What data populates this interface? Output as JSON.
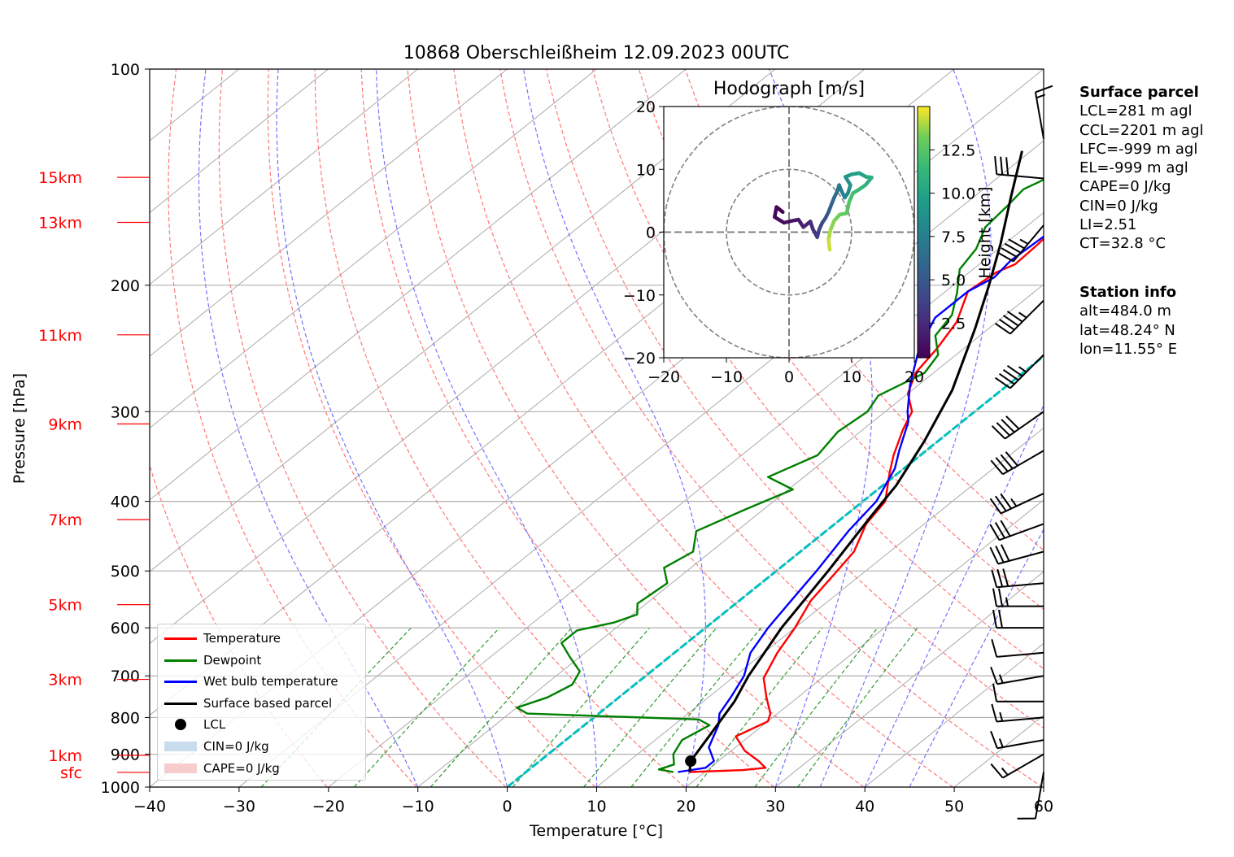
{
  "chart_data": {
    "type": "line",
    "title": "10868 Oberschleißheim 12.09.2023 00UTC",
    "xlabel": "Temperature [°C]",
    "ylabel": "Pressure [hPa]",
    "x_ticks": [
      "−40",
      "−30",
      "−20",
      "−10",
      "0",
      "10",
      "20",
      "30",
      "40",
      "50",
      "60"
    ],
    "x_tick_values": [
      -40,
      -30,
      -20,
      -10,
      0,
      10,
      20,
      30,
      40,
      50,
      60
    ],
    "y_ticks": [
      "100",
      "200",
      "300",
      "400",
      "500",
      "600",
      "700",
      "800",
      "900",
      "1000"
    ],
    "y_tick_values": [
      100,
      200,
      300,
      400,
      500,
      600,
      700,
      800,
      900,
      1000
    ],
    "xlim": [
      -40,
      60
    ],
    "ylim": [
      1000,
      100
    ],
    "y_scale": "log",
    "grid": true,
    "height_labels": [
      {
        "label": "15km",
        "p": 141.5
      },
      {
        "label": "13km",
        "p": 163.5
      },
      {
        "label": "11km",
        "p": 234.5
      },
      {
        "label": "9km",
        "p": 312
      },
      {
        "label": "7km",
        "p": 424
      },
      {
        "label": "5km",
        "p": 557
      },
      {
        "label": "3km",
        "p": 708
      },
      {
        "label": "1km",
        "p": 903
      },
      {
        "label": "sfc",
        "p": 954
      }
    ],
    "legend": {
      "position": "lower-left",
      "entries": [
        {
          "label": "Temperature",
          "color": "#ff0000",
          "kind": "line"
        },
        {
          "label": "Dewpoint",
          "color": "#008000",
          "kind": "line"
        },
        {
          "label": "Wet bulb temperature",
          "color": "#0000ff",
          "kind": "line"
        },
        {
          "label": "Surface based parcel",
          "color": "#000000",
          "kind": "line"
        },
        {
          "label": "LCL",
          "color": "#000000",
          "kind": "dot"
        },
        {
          "label": "CIN=0 J/kg",
          "color": "#c8dced",
          "kind": "patch"
        },
        {
          "label": "CAPE=0 J/kg",
          "color": "#f6cccc",
          "kind": "patch"
        }
      ]
    },
    "series": [
      {
        "name": "Temperature",
        "color": "#ff0000",
        "points": [
          [
            18.3,
            953
          ],
          [
            24.0,
            947
          ],
          [
            26.2,
            940
          ],
          [
            24.5,
            920
          ],
          [
            21.5,
            890
          ],
          [
            18.5,
            850
          ],
          [
            20.0,
            810
          ],
          [
            19.2,
            790
          ],
          [
            16.5,
            750
          ],
          [
            13.5,
            705
          ],
          [
            11.5,
            650
          ],
          [
            10.0,
            600
          ],
          [
            8.0,
            550
          ],
          [
            6.8,
            500
          ],
          [
            6.0,
            470
          ],
          [
            3.5,
            430
          ],
          [
            2.5,
            400
          ],
          [
            -1.0,
            365
          ],
          [
            -3.0,
            345
          ],
          [
            -5.5,
            318
          ],
          [
            -7.0,
            300
          ],
          [
            -10.0,
            283
          ],
          [
            -12.0,
            265
          ],
          [
            -13.0,
            245
          ],
          [
            -14.5,
            225
          ],
          [
            -17.5,
            204
          ],
          [
            -17.0,
            192
          ],
          [
            -16.0,
            187
          ],
          [
            -16.2,
            177
          ],
          [
            -16.5,
            167
          ],
          [
            -15.5,
            157
          ],
          [
            -12.5,
            148
          ],
          [
            -8.0,
            144
          ],
          [
            -5.0,
            136
          ]
        ]
      },
      {
        "name": "Dewpoint",
        "color": "#008000",
        "points": [
          [
            16.5,
            953
          ],
          [
            14.5,
            945
          ],
          [
            15.5,
            930
          ],
          [
            14.0,
            900
          ],
          [
            13.0,
            860
          ],
          [
            14.0,
            820
          ],
          [
            12.0,
            805
          ],
          [
            -8.0,
            790
          ],
          [
            -10.0,
            775
          ],
          [
            -8.0,
            750
          ],
          [
            -7.0,
            720
          ],
          [
            -8.0,
            690
          ],
          [
            -11.0,
            660
          ],
          [
            -14.0,
            630
          ],
          [
            -14.0,
            605
          ],
          [
            -11.0,
            590
          ],
          [
            -9.5,
            575
          ],
          [
            -11.0,
            555
          ],
          [
            -10.5,
            520
          ],
          [
            -13.0,
            495
          ],
          [
            -12.0,
            470
          ],
          [
            -14.5,
            440
          ],
          [
            -12.0,
            410
          ],
          [
            -9.5,
            385
          ],
          [
            -14.0,
            370
          ],
          [
            -11.5,
            345
          ],
          [
            -12.5,
            320
          ],
          [
            -12.0,
            300
          ],
          [
            -13.0,
            285
          ],
          [
            -11.0,
            265
          ],
          [
            -12.0,
            250
          ],
          [
            -15.0,
            235
          ],
          [
            -16.0,
            220
          ],
          [
            -18.5,
            205
          ],
          [
            -21.5,
            190
          ],
          [
            -22.5,
            178
          ],
          [
            -24.5,
            166
          ],
          [
            -25.0,
            155
          ],
          [
            -25.5,
            147
          ],
          [
            -24.0,
            140
          ]
        ]
      },
      {
        "name": "Wet bulb temperature",
        "color": "#0000ff",
        "points": [
          [
            17.0,
            953
          ],
          [
            19.5,
            940
          ],
          [
            19.5,
            920
          ],
          [
            17.0,
            880
          ],
          [
            15.0,
            820
          ],
          [
            13.5,
            790
          ],
          [
            12.5,
            750
          ],
          [
            11.0,
            700
          ],
          [
            8.5,
            650
          ],
          [
            7.0,
            600
          ],
          [
            5.8,
            550
          ],
          [
            4.5,
            500
          ],
          [
            2.5,
            440
          ],
          [
            1.5,
            400
          ],
          [
            -1.0,
            360
          ],
          [
            -3.0,
            340
          ],
          [
            -6.0,
            310
          ],
          [
            -7.5,
            300
          ],
          [
            -11.0,
            275
          ],
          [
            -15.0,
            245
          ],
          [
            -17.5,
            222
          ],
          [
            -17.5,
            204
          ],
          [
            -16.5,
            195
          ],
          [
            -17.0,
            185
          ],
          [
            -16.5,
            165
          ],
          [
            -15.5,
            155
          ],
          [
            -13.0,
            148
          ],
          [
            -8.0,
            143
          ],
          [
            -5.5,
            137
          ]
        ]
      },
      {
        "name": "Surface based parcel",
        "color": "#000000",
        "points": [
          [
            18.3,
            953
          ],
          [
            16.9,
            920
          ],
          [
            15.5,
            850
          ],
          [
            13.5,
            760
          ],
          [
            11.5,
            700
          ],
          [
            8.5,
            600
          ],
          [
            5.8,
            500
          ],
          [
            3.0,
            420
          ],
          [
            1.5,
            380
          ],
          [
            -1.5,
            330
          ],
          [
            -5.5,
            280
          ],
          [
            -11.5,
            230
          ],
          [
            -16.0,
            200
          ],
          [
            -20.5,
            175
          ],
          [
            -26.0,
            150
          ],
          [
            -31.0,
            130
          ]
        ]
      }
    ],
    "lcl": {
      "t": 16.9,
      "p": 920
    },
    "zero_line": {
      "color": "#00c0c0",
      "t": 0
    },
    "background_lines": {
      "isotherm_step": 10,
      "dry_adiabat_theta": [
        253,
        263,
        273,
        283,
        293,
        303,
        313,
        323,
        333,
        343,
        353,
        363,
        373
      ],
      "moist_adiabat_t0": [
        -10,
        0,
        10,
        20,
        30,
        35,
        40,
        45
      ],
      "mixing_ratio_gkg": [
        0.4,
        1,
        2,
        4,
        7,
        10,
        16,
        24,
        32
      ]
    },
    "wind_barbs": [
      {
        "p": 953,
        "kt": 10,
        "dir": 190
      },
      {
        "p": 900,
        "kt": 15,
        "dir": 240
      },
      {
        "p": 860,
        "kt": 15,
        "dir": 260
      },
      {
        "p": 800,
        "kt": 15,
        "dir": 265
      },
      {
        "p": 760,
        "kt": 10,
        "dir": 270
      },
      {
        "p": 700,
        "kt": 15,
        "dir": 260
      },
      {
        "p": 650,
        "kt": 10,
        "dir": 265
      },
      {
        "p": 600,
        "kt": 20,
        "dir": 270
      },
      {
        "p": 560,
        "kt": 25,
        "dir": 270
      },
      {
        "p": 520,
        "kt": 30,
        "dir": 265
      },
      {
        "p": 470,
        "kt": 30,
        "dir": 255
      },
      {
        "p": 430,
        "kt": 30,
        "dir": 250
      },
      {
        "p": 390,
        "kt": 35,
        "dir": 245
      },
      {
        "p": 340,
        "kt": 40,
        "dir": 240
      },
      {
        "p": 300,
        "kt": 40,
        "dir": 235
      },
      {
        "p": 250,
        "kt": 45,
        "dir": 225
      },
      {
        "p": 210,
        "kt": 45,
        "dir": 225
      },
      {
        "p": 165,
        "kt": 45,
        "dir": 220
      },
      {
        "p": 142,
        "kt": 30,
        "dir": 275
      },
      {
        "p": 125,
        "kt": 15,
        "dir": 350
      }
    ],
    "hodograph": {
      "title": "Hodograph [m/s]",
      "xlim": [
        -20,
        20
      ],
      "ylim": [
        -20,
        20
      ],
      "x_ticks": [
        "−20",
        "−10",
        "0",
        "10",
        "20"
      ],
      "x_tick_values": [
        -20,
        -10,
        0,
        10,
        20
      ],
      "y_ticks": [
        "−20",
        "−10",
        "0",
        "10",
        "20"
      ],
      "y_tick_values": [
        -20,
        -10,
        0,
        10,
        20
      ],
      "rings": [
        10,
        20
      ],
      "colorbar_label": "Height [km]",
      "colorbar_ticks": [
        "2.5",
        "5.0",
        "7.5",
        "10.0",
        "12.5"
      ],
      "colorbar_tick_values": [
        2.5,
        5.0,
        7.5,
        10.0,
        12.5
      ],
      "colorbar_range": [
        0.5,
        15
      ],
      "trace": [
        [
          -1.0,
          3.2,
          0.5
        ],
        [
          -2.0,
          4.0,
          0.7
        ],
        [
          -2.3,
          2.4,
          0.9
        ],
        [
          -0.8,
          1.5,
          1.1
        ],
        [
          0.5,
          1.8,
          1.3
        ],
        [
          1.5,
          2.0,
          1.6
        ],
        [
          2.3,
          0.8,
          2.0
        ],
        [
          3.4,
          1.7,
          2.4
        ],
        [
          3.8,
          0.5,
          2.8
        ],
        [
          4.5,
          -0.8,
          3.2
        ],
        [
          4.8,
          0.4,
          3.6
        ],
        [
          5.3,
          1.5,
          4.0
        ],
        [
          5.8,
          2.2,
          4.5
        ],
        [
          6.3,
          3.2,
          5.0
        ],
        [
          6.8,
          4.5,
          5.5
        ],
        [
          7.2,
          5.5,
          6.0
        ],
        [
          7.7,
          6.5,
          6.5
        ],
        [
          8.0,
          7.5,
          7.0
        ],
        [
          8.4,
          6.5,
          7.4
        ],
        [
          8.9,
          5.5,
          7.8
        ],
        [
          9.4,
          6.2,
          8.2
        ],
        [
          9.8,
          7.5,
          8.6
        ],
        [
          9.0,
          8.8,
          9.0
        ],
        [
          10.0,
          9.2,
          9.4
        ],
        [
          11.2,
          9.4,
          9.8
        ],
        [
          12.3,
          8.8,
          10.2
        ],
        [
          13.2,
          8.7,
          10.6
        ],
        [
          12.2,
          7.5,
          11.0
        ],
        [
          11.2,
          6.8,
          11.4
        ],
        [
          10.2,
          6.2,
          11.8
        ],
        [
          9.6,
          4.8,
          12.2
        ],
        [
          9.2,
          3.0,
          12.6
        ],
        [
          8.1,
          2.8,
          13.0
        ],
        [
          7.2,
          1.8,
          13.4
        ],
        [
          6.6,
          0.3,
          13.8
        ],
        [
          6.3,
          -1.2,
          14.2
        ],
        [
          6.5,
          -2.8,
          14.6
        ]
      ]
    }
  },
  "surface_parcel": {
    "heading": "Surface parcel",
    "lines": [
      "LCL=281 m agl",
      "CCL=2201 m agl",
      "LFC=-999 m agl",
      "EL=-999 m agl",
      "CAPE=0 J/kg",
      "CIN=0 J/kg",
      "LI=2.51",
      "CT=32.8 °C"
    ]
  },
  "station_info": {
    "heading": "Station info",
    "lines": [
      "alt=484.0 m",
      "lat=48.24° N",
      "lon=11.55° E"
    ]
  }
}
